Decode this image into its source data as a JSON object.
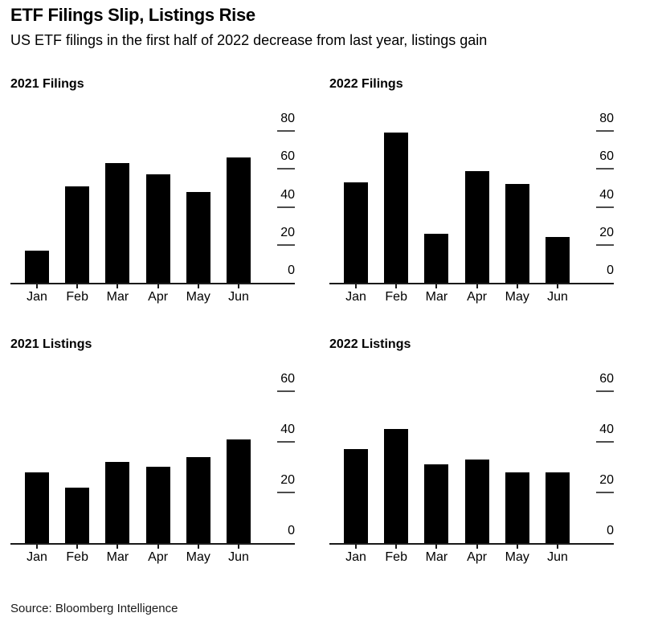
{
  "header": {
    "title": "ETF Filings Slip, Listings Rise",
    "subtitle": "US ETF filings in the first half of 2022 decrease from last year, listings gain"
  },
  "footer": {
    "source": "Source: Bloomberg Intelligence"
  },
  "colors": {
    "background": "#ffffff",
    "bar": "#000000",
    "axis_line": "#1a1a1a",
    "x_tick": "#1a1a1a",
    "y_tick_dash": "#4d4d4d",
    "text": "#000000"
  },
  "chart_data": [
    {
      "type": "bar",
      "title": "2021 Filings",
      "categories": [
        "Jan",
        "Feb",
        "Mar",
        "Apr",
        "May",
        "Jun"
      ],
      "values": [
        17,
        51,
        63,
        57,
        48,
        66
      ],
      "xlabel": "",
      "ylabel": "",
      "ylim": [
        0,
        80
      ],
      "yticks": [
        0,
        20,
        40,
        60,
        80
      ],
      "grid": false,
      "legend_position": "none",
      "axis_label_side": "right"
    },
    {
      "type": "bar",
      "title": "2022 Filings",
      "categories": [
        "Jan",
        "Feb",
        "Mar",
        "Apr",
        "May",
        "Jun"
      ],
      "values": [
        53,
        79,
        26,
        59,
        52,
        24
      ],
      "xlabel": "",
      "ylabel": "",
      "ylim": [
        0,
        80
      ],
      "yticks": [
        0,
        20,
        40,
        60,
        80
      ],
      "grid": false,
      "legend_position": "none",
      "axis_label_side": "right"
    },
    {
      "type": "bar",
      "title": "2021 Listings",
      "categories": [
        "Jan",
        "Feb",
        "Mar",
        "Apr",
        "May",
        "Jun"
      ],
      "values": [
        28,
        22,
        32,
        30,
        34,
        41
      ],
      "xlabel": "",
      "ylabel": "",
      "ylim": [
        0,
        60
      ],
      "yticks": [
        0,
        20,
        40,
        60
      ],
      "grid": false,
      "legend_position": "none",
      "axis_label_side": "right"
    },
    {
      "type": "bar",
      "title": "2022 Listings",
      "categories": [
        "Jan",
        "Feb",
        "Mar",
        "Apr",
        "May",
        "Jun"
      ],
      "values": [
        37,
        45,
        31,
        33,
        28,
        28
      ],
      "xlabel": "",
      "ylabel": "",
      "ylim": [
        0,
        60
      ],
      "yticks": [
        0,
        20,
        40,
        60
      ],
      "grid": false,
      "legend_position": "none",
      "axis_label_side": "right"
    }
  ]
}
